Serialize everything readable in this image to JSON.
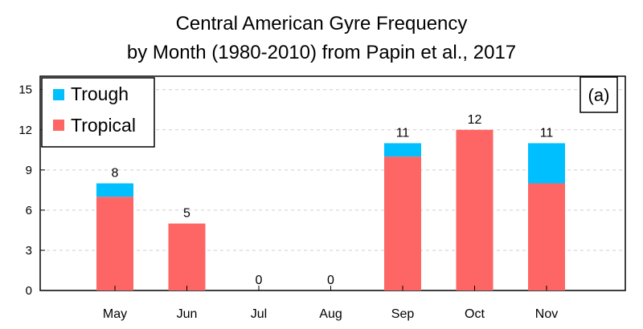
{
  "chart_data": {
    "type": "bar",
    "stacked": true,
    "title_line1": "Central American Gyre Frequency",
    "title_line2": "by Month (1980-2010) from Papin et al., 2017",
    "panel_label": "(a)",
    "categories": [
      "May",
      "Jun",
      "Jul",
      "Aug",
      "Sep",
      "Oct",
      "Nov"
    ],
    "series": [
      {
        "name": "Tropical",
        "values": [
          7,
          5,
          0,
          0,
          10,
          12,
          8
        ],
        "color": "#fe6666"
      },
      {
        "name": "Trough",
        "values": [
          1,
          0,
          0,
          0,
          1,
          0,
          3
        ],
        "color": "#00bfff"
      }
    ],
    "totals": [
      8,
      5,
      0,
      0,
      11,
      12,
      11
    ],
    "yticks": [
      0,
      3,
      6,
      9,
      12,
      15
    ],
    "ylim": [
      0,
      16
    ],
    "grid": true,
    "legend_position": "top-left"
  }
}
